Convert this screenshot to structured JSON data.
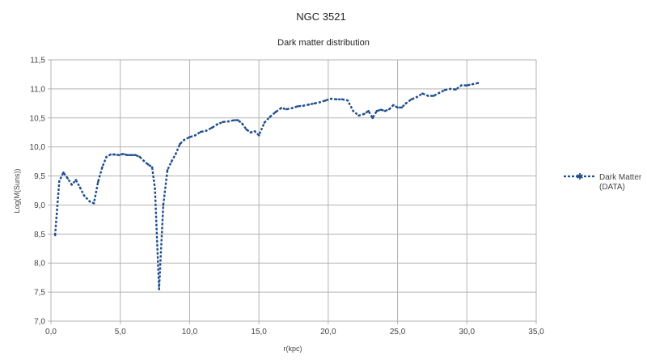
{
  "chart_data": {
    "type": "line",
    "title": "NGC 3521",
    "subtitle": "Dark matter distribution",
    "xlabel": "r(kpc)",
    "ylabel": "Log(M(Suns))",
    "xlim": [
      0,
      35
    ],
    "ylim": [
      7.0,
      11.5
    ],
    "x_ticks": [
      "0,0",
      "5,0",
      "10,0",
      "15,0",
      "20,0",
      "25,0",
      "30,0",
      "35,0"
    ],
    "y_ticks": [
      "7,0",
      "7,5",
      "8,0",
      "8,5",
      "9,0",
      "9,5",
      "10,0",
      "10,5",
      "11,0",
      "11,5"
    ],
    "grid": true,
    "legend_position": "right",
    "series": [
      {
        "name": "Dark Matter (DATA)",
        "color": "#1f4e8c",
        "line_style": "dashed",
        "marker": "asterisk",
        "x": [
          0.3,
          0.6,
          0.9,
          1.2,
          1.5,
          1.8,
          2.1,
          2.4,
          2.8,
          3.1,
          3.4,
          3.7,
          4.0,
          4.3,
          4.6,
          4.9,
          5.2,
          5.5,
          5.8,
          6.1,
          6.4,
          6.7,
          7.0,
          7.3,
          7.5,
          7.8,
          8.1,
          8.4,
          8.7,
          9.0,
          9.3,
          9.6,
          10.0,
          10.4,
          10.8,
          11.2,
          11.6,
          12.0,
          12.4,
          12.8,
          13.2,
          13.5,
          13.8,
          14.1,
          14.4,
          14.7,
          15.0,
          15.4,
          15.8,
          16.2,
          16.6,
          17.0,
          17.4,
          17.8,
          18.2,
          18.6,
          19.0,
          19.4,
          19.8,
          20.2,
          20.6,
          21.0,
          21.4,
          21.8,
          22.2,
          22.6,
          22.9,
          23.2,
          23.5,
          23.8,
          24.1,
          24.4,
          24.7,
          25.0,
          25.3,
          25.6,
          26.0,
          26.4,
          26.8,
          27.2,
          27.6,
          28.0,
          28.4,
          28.8,
          29.2,
          29.6,
          30.0,
          30.4,
          30.8
        ],
        "y": [
          8.48,
          9.41,
          9.56,
          9.46,
          9.35,
          9.43,
          9.3,
          9.16,
          9.06,
          9.03,
          9.4,
          9.65,
          9.83,
          9.87,
          9.87,
          9.86,
          9.88,
          9.86,
          9.86,
          9.86,
          9.83,
          9.76,
          9.7,
          9.65,
          9.28,
          7.55,
          9.0,
          9.6,
          9.75,
          9.88,
          10.05,
          10.12,
          10.17,
          10.2,
          10.26,
          10.28,
          10.33,
          10.39,
          10.43,
          10.44,
          10.46,
          10.46,
          10.4,
          10.3,
          10.25,
          10.27,
          10.2,
          10.42,
          10.52,
          10.6,
          10.67,
          10.65,
          10.67,
          10.7,
          10.71,
          10.73,
          10.75,
          10.77,
          10.8,
          10.83,
          10.82,
          10.82,
          10.8,
          10.62,
          10.54,
          10.57,
          10.62,
          10.5,
          10.62,
          10.64,
          10.62,
          10.65,
          10.72,
          10.68,
          10.68,
          10.75,
          10.82,
          10.86,
          10.92,
          10.88,
          10.88,
          10.93,
          10.98,
          11.0,
          10.99,
          11.06,
          11.06,
          11.08,
          11.1
        ]
      }
    ]
  }
}
